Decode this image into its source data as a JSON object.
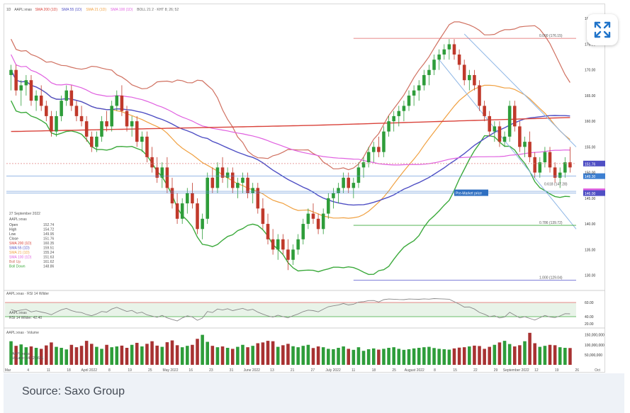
{
  "caption": "Source: Saxo Group",
  "chart_data": {
    "type": "candlestick",
    "symbol": "AAPL:xnas",
    "header_legend": [
      "1D",
      "AAPL:xnas",
      "SMA 200 (1D)",
      "SMA 55 (1D)",
      "SMA 21 (1D)",
      "SMA 100 (1D)",
      "BOLL 21 2 · KHT 8; 26; 52"
    ],
    "legend_colors": {
      "sma200": "#d9423a",
      "sma55": "#4f4fc4",
      "sma21": "#f0a040",
      "sma100": "#e060e0",
      "boll_up": "#d07060",
      "boll_down": "#3caa3c"
    },
    "x_tick_labels": [
      "Mar",
      "4",
      "11",
      "18",
      "April 2022",
      "8",
      "19",
      "25",
      "May 2022",
      "16",
      "23",
      "31",
      "June 2022",
      "13",
      "21",
      "27",
      "July 2022",
      "11",
      "18",
      "25",
      "August 2022",
      "8",
      "15",
      "22",
      "29",
      "September 2022",
      "12",
      "19",
      "26",
      "Oct"
    ],
    "y_ticks_price": [
      "180.00",
      "175.00",
      "170.00",
      "165.00",
      "160.00",
      "155.00",
      "150.00",
      "145.00",
      "140.00",
      "135.00",
      "130.00"
    ],
    "ylim_price": [
      128,
      181
    ],
    "price_tags": [
      {
        "label": "151.76",
        "value": 151.76
      },
      {
        "label": "149.30",
        "value": 149.3
      },
      {
        "label": "146.35",
        "value": 146.35
      },
      {
        "label": "146.00",
        "value": 146.0
      }
    ],
    "pre_market_label": "Pre-Market price",
    "fib_levels": [
      {
        "label": "0.000 (176.15)",
        "value": 176.15,
        "color": "#e06060"
      },
      {
        "label": "0.786 (139.72)",
        "value": 139.72,
        "color": "#3caa3c"
      },
      {
        "label": "1.000 (129.04)",
        "value": 129.04,
        "color": "#5555cc"
      }
    ],
    "fib_small_label": "0.618 (147.28)",
    "info_panel": {
      "date": "27 September 2022",
      "symbol": "AAPL:xnas",
      "rows": [
        {
          "label": "Open",
          "value": "152.74"
        },
        {
          "label": "High",
          "value": "154.72"
        },
        {
          "label": "Low",
          "value": "149.95"
        },
        {
          "label": "Close",
          "value": "151.76"
        },
        {
          "label": "SMA 200 (1D)",
          "value": "160.35"
        },
        {
          "label": "SMA 55 (1D)",
          "value": "159.51"
        },
        {
          "label": "SMA 21 (1D)",
          "value": "155.24"
        },
        {
          "label": "SMA 100 (1D)",
          "value": "151.63"
        },
        {
          "label": "Boll Up",
          "value": "161.62"
        },
        {
          "label": "Boll Down",
          "value": "148.86"
        }
      ]
    },
    "rsi_panel": {
      "title": "AAPL:xnas · RSI 14 Wilder",
      "sub_label": "AAPL:xnas",
      "sub_value": "RSI 14 Wilder: 42.40",
      "levels": [
        70,
        50,
        30
      ],
      "level_labels": [
        "60.00",
        "40.00",
        "20.00"
      ]
    },
    "volume_panel": {
      "title": "AAPL:xnas · Volume",
      "sub_label": "AAPL:xnas",
      "sub_value": "Volume: 84,623,651",
      "y_ticks": [
        "150,000,000",
        "100,000,000",
        "50,000,000"
      ]
    },
    "candles": [
      [
        169,
        171,
        166,
        170
      ],
      [
        170,
        171,
        165,
        166
      ],
      [
        166,
        168,
        163,
        167
      ],
      [
        167,
        169,
        165,
        168
      ],
      [
        168,
        169,
        163,
        164
      ],
      [
        164,
        166,
        162,
        165
      ],
      [
        165,
        167,
        162,
        163
      ],
      [
        163,
        164,
        160,
        161
      ],
      [
        161,
        162,
        157,
        158
      ],
      [
        158,
        162,
        157,
        161
      ],
      [
        161,
        165,
        160,
        164
      ],
      [
        164,
        167,
        163,
        166
      ],
      [
        166,
        167,
        162,
        163
      ],
      [
        163,
        164,
        160,
        161
      ],
      [
        161,
        163,
        159,
        160
      ],
      [
        160,
        161,
        156,
        157
      ],
      [
        157,
        158,
        154,
        155
      ],
      [
        155,
        158,
        154,
        157
      ],
      [
        157,
        161,
        156,
        160
      ],
      [
        160,
        162,
        158,
        159
      ],
      [
        159,
        164,
        158,
        163
      ],
      [
        163,
        166,
        162,
        165
      ],
      [
        165,
        167,
        161,
        162
      ],
      [
        162,
        163,
        158,
        159
      ],
      [
        159,
        161,
        157,
        160
      ],
      [
        160,
        161,
        155,
        156
      ],
      [
        156,
        158,
        154,
        157
      ],
      [
        157,
        158,
        152,
        153
      ],
      [
        153,
        155,
        150,
        151
      ],
      [
        151,
        153,
        148,
        149
      ],
      [
        149,
        152,
        147,
        151
      ],
      [
        151,
        153,
        146,
        147
      ],
      [
        147,
        149,
        143,
        144
      ],
      [
        144,
        146,
        140,
        141
      ],
      [
        141,
        145,
        140,
        144
      ],
      [
        144,
        147,
        142,
        146
      ],
      [
        146,
        148,
        143,
        144
      ],
      [
        144,
        145,
        138,
        139
      ],
      [
        139,
        142,
        137,
        141
      ],
      [
        141,
        150,
        140,
        149
      ],
      [
        149,
        151,
        146,
        147
      ],
      [
        147,
        152,
        146,
        151
      ],
      [
        151,
        153,
        148,
        149
      ],
      [
        149,
        151,
        147,
        150
      ],
      [
        150,
        151,
        146,
        147
      ],
      [
        147,
        149,
        145,
        148
      ],
      [
        148,
        150,
        146,
        149
      ],
      [
        149,
        150,
        145,
        146
      ],
      [
        146,
        148,
        144,
        147
      ],
      [
        147,
        148,
        142,
        143
      ],
      [
        143,
        145,
        139,
        140
      ],
      [
        140,
        142,
        136,
        137
      ],
      [
        137,
        139,
        134,
        135
      ],
      [
        135,
        138,
        133,
        137
      ],
      [
        137,
        138,
        134,
        135
      ],
      [
        135,
        137,
        131,
        133
      ],
      [
        133,
        136,
        132,
        135
      ],
      [
        135,
        138,
        134,
        137
      ],
      [
        137,
        141,
        136,
        140
      ],
      [
        140,
        143,
        139,
        142
      ],
      [
        142,
        144,
        140,
        141
      ],
      [
        141,
        142,
        138,
        139
      ],
      [
        139,
        143,
        138,
        142
      ],
      [
        142,
        146,
        141,
        145
      ],
      [
        145,
        147,
        143,
        146
      ],
      [
        146,
        148,
        144,
        147
      ],
      [
        147,
        150,
        146,
        149
      ],
      [
        149,
        150,
        146,
        147
      ],
      [
        147,
        149,
        145,
        148
      ],
      [
        148,
        152,
        147,
        151
      ],
      [
        151,
        153,
        149,
        152
      ],
      [
        152,
        155,
        151,
        154
      ],
      [
        154,
        156,
        152,
        155
      ],
      [
        155,
        157,
        153,
        154
      ],
      [
        154,
        159,
        153,
        158
      ],
      [
        158,
        161,
        157,
        160
      ],
      [
        160,
        162,
        158,
        161
      ],
      [
        161,
        163,
        159,
        162
      ],
      [
        162,
        164,
        160,
        163
      ],
      [
        163,
        166,
        162,
        165
      ],
      [
        165,
        167,
        163,
        166
      ],
      [
        166,
        168,
        164,
        167
      ],
      [
        167,
        170,
        166,
        169
      ],
      [
        169,
        171,
        167,
        170
      ],
      [
        170,
        173,
        169,
        172
      ],
      [
        172,
        174,
        170,
        173
      ],
      [
        173,
        175,
        172,
        174
      ],
      [
        174,
        176,
        172,
        175
      ],
      [
        175,
        176,
        172,
        173
      ],
      [
        173,
        174,
        170,
        171
      ],
      [
        171,
        172,
        167,
        168
      ],
      [
        168,
        170,
        166,
        169
      ],
      [
        169,
        170,
        166,
        167
      ],
      [
        167,
        168,
        162,
        163
      ],
      [
        163,
        164,
        160,
        161
      ],
      [
        161,
        162,
        157,
        158
      ],
      [
        158,
        160,
        156,
        159
      ],
      [
        159,
        160,
        155,
        156
      ],
      [
        156,
        158,
        155,
        157
      ],
      [
        157,
        164,
        156,
        163
      ],
      [
        163,
        164,
        158,
        159
      ],
      [
        159,
        160,
        154,
        155
      ],
      [
        155,
        157,
        153,
        156
      ],
      [
        156,
        158,
        152,
        153
      ],
      [
        153,
        154,
        149,
        150
      ],
      [
        150,
        153,
        149,
        152
      ],
      [
        152,
        155,
        151,
        154
      ],
      [
        154,
        155,
        150,
        151
      ],
      [
        151,
        152,
        148,
        149
      ],
      [
        149,
        151,
        147,
        150
      ],
      [
        150,
        153,
        149,
        152
      ],
      [
        152,
        155,
        150,
        151
      ]
    ],
    "volume": [
      118,
      95,
      102,
      88,
      92,
      85,
      80,
      97,
      112,
      90,
      85,
      77,
      100,
      88,
      95,
      120,
      105,
      90,
      80,
      100,
      88,
      92,
      96,
      85,
      100,
      110,
      92,
      105,
      118,
      96,
      90,
      113,
      122,
      98,
      88,
      95,
      100,
      130,
      150,
      115,
      95,
      88,
      92,
      85,
      80,
      90,
      100,
      88,
      95,
      108,
      112,
      120,
      118,
      90,
      98,
      105,
      93,
      88,
      95,
      100,
      84,
      92,
      88,
      80,
      78,
      85,
      92,
      80,
      75,
      88,
      70,
      78,
      82,
      76,
      80,
      85,
      88,
      80,
      75,
      78,
      82,
      85,
      88,
      90,
      84,
      80,
      78,
      76,
      82,
      86,
      88,
      92,
      96,
      94,
      80,
      90,
      100,
      112,
      120,
      104,
      92,
      98,
      118,
      160,
      108,
      90,
      95,
      100,
      98,
      88,
      85,
      84
    ]
  }
}
